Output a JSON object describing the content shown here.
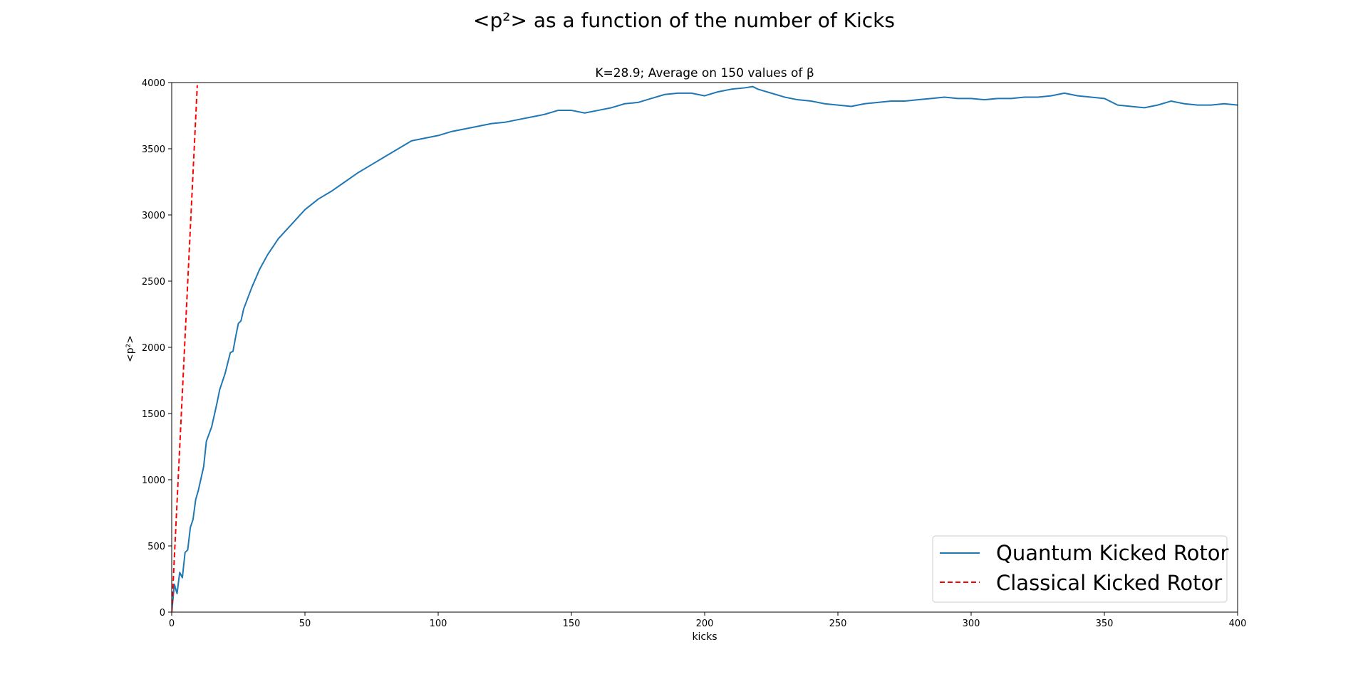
{
  "figure": {
    "title": "<p²> as a function of the number of Kicks"
  },
  "chart_data": {
    "type": "line",
    "title": "K=28.9; Average on 150 values of β",
    "xlabel": "kicks",
    "ylabel": "<p²>",
    "xlim": [
      0,
      400
    ],
    "ylim": [
      0,
      4000
    ],
    "xticks": [
      0,
      50,
      100,
      150,
      200,
      250,
      300,
      350,
      400
    ],
    "yticks": [
      0,
      500,
      1000,
      1500,
      2000,
      2500,
      3000,
      3500,
      4000
    ],
    "grid": false,
    "legend_position": "lower-right",
    "series": [
      {
        "name": "Quantum Kicked Rotor",
        "color": "#1f77b4",
        "style": "solid",
        "points": [
          [
            0,
            0
          ],
          [
            1,
            210
          ],
          [
            2,
            140
          ],
          [
            3,
            300
          ],
          [
            4,
            260
          ],
          [
            5,
            450
          ],
          [
            6,
            470
          ],
          [
            7,
            640
          ],
          [
            8,
            700
          ],
          [
            9,
            850
          ],
          [
            10,
            920
          ],
          [
            12,
            1100
          ],
          [
            13,
            1290
          ],
          [
            15,
            1400
          ],
          [
            17,
            1580
          ],
          [
            18,
            1680
          ],
          [
            20,
            1800
          ],
          [
            22,
            1960
          ],
          [
            23,
            1970
          ],
          [
            24,
            2080
          ],
          [
            25,
            2180
          ],
          [
            26,
            2200
          ],
          [
            27,
            2290
          ],
          [
            30,
            2450
          ],
          [
            33,
            2590
          ],
          [
            36,
            2700
          ],
          [
            40,
            2820
          ],
          [
            45,
            2930
          ],
          [
            50,
            3040
          ],
          [
            55,
            3120
          ],
          [
            60,
            3180
          ],
          [
            65,
            3250
          ],
          [
            70,
            3320
          ],
          [
            75,
            3380
          ],
          [
            80,
            3440
          ],
          [
            85,
            3500
          ],
          [
            90,
            3560
          ],
          [
            95,
            3580
          ],
          [
            100,
            3600
          ],
          [
            105,
            3630
          ],
          [
            110,
            3650
          ],
          [
            115,
            3670
          ],
          [
            120,
            3690
          ],
          [
            125,
            3700
          ],
          [
            130,
            3720
          ],
          [
            135,
            3740
          ],
          [
            140,
            3760
          ],
          [
            145,
            3790
          ],
          [
            150,
            3790
          ],
          [
            155,
            3770
          ],
          [
            160,
            3790
          ],
          [
            165,
            3810
          ],
          [
            170,
            3840
          ],
          [
            175,
            3850
          ],
          [
            180,
            3880
          ],
          [
            185,
            3910
          ],
          [
            190,
            3920
          ],
          [
            195,
            3920
          ],
          [
            200,
            3900
          ],
          [
            205,
            3930
          ],
          [
            210,
            3950
          ],
          [
            215,
            3960
          ],
          [
            218,
            3970
          ],
          [
            220,
            3950
          ],
          [
            225,
            3920
          ],
          [
            230,
            3890
          ],
          [
            235,
            3870
          ],
          [
            240,
            3860
          ],
          [
            245,
            3840
          ],
          [
            250,
            3830
          ],
          [
            255,
            3820
          ],
          [
            260,
            3840
          ],
          [
            265,
            3850
          ],
          [
            270,
            3860
          ],
          [
            275,
            3860
          ],
          [
            280,
            3870
          ],
          [
            285,
            3880
          ],
          [
            290,
            3890
          ],
          [
            295,
            3880
          ],
          [
            300,
            3880
          ],
          [
            305,
            3870
          ],
          [
            310,
            3880
          ],
          [
            315,
            3880
          ],
          [
            320,
            3890
          ],
          [
            325,
            3890
          ],
          [
            330,
            3900
          ],
          [
            335,
            3920
          ],
          [
            340,
            3900
          ],
          [
            345,
            3890
          ],
          [
            350,
            3880
          ],
          [
            355,
            3830
          ],
          [
            360,
            3820
          ],
          [
            365,
            3810
          ],
          [
            370,
            3830
          ],
          [
            375,
            3860
          ],
          [
            380,
            3840
          ],
          [
            385,
            3830
          ],
          [
            390,
            3830
          ],
          [
            395,
            3840
          ],
          [
            400,
            3830
          ]
        ]
      },
      {
        "name": "Classical Kicked Rotor",
        "color": "#ff0000",
        "style": "dashed",
        "points": [
          [
            0,
            0
          ],
          [
            9.6,
            3980
          ]
        ]
      }
    ]
  }
}
